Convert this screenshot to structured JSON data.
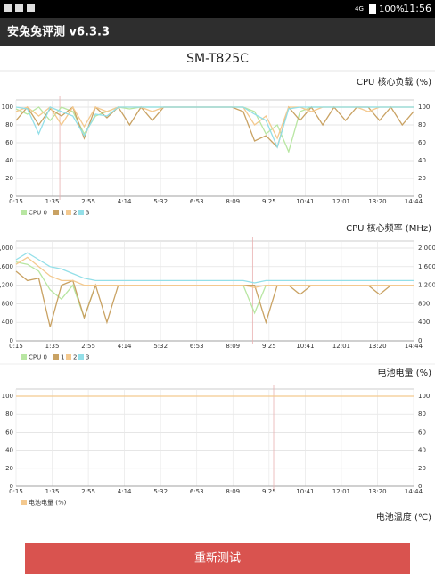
{
  "status_bar": {
    "network": "4G",
    "battery": "100%",
    "time": "11:56"
  },
  "app_title": "安兔兔评测 v6.3.3",
  "device": "SM-T825C",
  "chart_data": [
    {
      "type": "line",
      "title": "CPU 核心负载 (%)",
      "xlabels": [
        "0:15",
        "1:35",
        "2:55",
        "4:14",
        "5:32",
        "6:53",
        "8:09",
        "9:25",
        "10:41",
        "12:01",
        "13:20",
        "14:44"
      ],
      "ylim": [
        0,
        100
      ],
      "yticks": [
        0,
        20,
        40,
        60,
        80,
        100
      ],
      "grid": true,
      "series": [
        {
          "name": "CPU 0",
          "color": "#b8e6a2",
          "values": [
            98,
            92,
            100,
            85,
            100,
            95,
            70,
            90,
            95,
            100,
            98,
            100,
            100,
            100,
            100,
            100,
            100,
            100,
            100,
            100,
            100,
            95,
            70,
            80,
            50,
            95,
            100,
            100,
            100,
            100,
            100,
            100,
            100,
            100,
            100,
            100
          ]
        },
        {
          "name": "1",
          "color": "#c9a263",
          "values": [
            85,
            100,
            80,
            98,
            90,
            100,
            65,
            100,
            88,
            100,
            80,
            100,
            85,
            100,
            100,
            100,
            100,
            100,
            100,
            100,
            95,
            62,
            68,
            55,
            100,
            85,
            100,
            80,
            100,
            85,
            100,
            100,
            85,
            100,
            80,
            95
          ]
        },
        {
          "name": "2",
          "color": "#f4c98f",
          "values": [
            95,
            100,
            90,
            100,
            80,
            100,
            78,
            100,
            95,
            100,
            100,
            100,
            95,
            100,
            100,
            100,
            100,
            100,
            100,
            100,
            100,
            80,
            90,
            65,
            100,
            100,
            95,
            100,
            100,
            100,
            100,
            95,
            100,
            100,
            100,
            100
          ]
        },
        {
          "name": "3",
          "color": "#93dfe8",
          "values": [
            100,
            98,
            70,
            100,
            95,
            90,
            68,
            92,
            90,
            100,
            100,
            100,
            100,
            100,
            100,
            100,
            100,
            100,
            100,
            100,
            100,
            92,
            85,
            55,
            98,
            100,
            100,
            100,
            100,
            100,
            100,
            100,
            100,
            100,
            100,
            100
          ]
        }
      ]
    },
    {
      "type": "line",
      "title": "CPU 核心频率 (MHz)",
      "xlabels": [
        "0:15",
        "1:35",
        "2:55",
        "4:14",
        "5:32",
        "6:53",
        "8:09",
        "9:25",
        "10:41",
        "12:01",
        "13:20",
        "14:44"
      ],
      "ylim": [
        0,
        2000
      ],
      "yticks": [
        0,
        400,
        800,
        {
          "value": 1200,
          "label": "1,200"
        },
        {
          "value": 1600,
          "label": "1,600"
        },
        {
          "value": 2000,
          "label": "2,000"
        }
      ],
      "grid": true,
      "series": [
        {
          "name": "CPU 0",
          "color": "#b8e6a2",
          "values": [
            1700,
            1650,
            1500,
            1100,
            900,
            1200,
            500,
            1200,
            1200,
            1200,
            1200,
            1200,
            1200,
            1200,
            1200,
            1200,
            1200,
            1200,
            1200,
            1200,
            1200,
            600,
            1200,
            1200,
            1200,
            1200,
            1200,
            1200,
            1200,
            1200,
            1200,
            1200,
            1200,
            1200,
            1200,
            1200
          ]
        },
        {
          "name": "1",
          "color": "#c9a263",
          "values": [
            1500,
            1300,
            1350,
            300,
            1200,
            1300,
            500,
            1200,
            400,
            1200,
            1200,
            1200,
            1200,
            1200,
            1200,
            1200,
            1200,
            1200,
            1200,
            1200,
            1200,
            1200,
            400,
            1200,
            1200,
            1000,
            1200,
            1200,
            1200,
            1200,
            1200,
            1200,
            1000,
            1200,
            1200,
            1200
          ]
        },
        {
          "name": "2",
          "color": "#f4c98f",
          "values": [
            1650,
            1800,
            1600,
            1400,
            1300,
            1300,
            1200,
            1200,
            1200,
            1200,
            1200,
            1200,
            1200,
            1200,
            1200,
            1200,
            1200,
            1200,
            1200,
            1200,
            1200,
            1150,
            1200,
            1200,
            1200,
            1200,
            1200,
            1200,
            1200,
            1200,
            1200,
            1200,
            1200,
            1200,
            1200,
            1200
          ]
        },
        {
          "name": "3",
          "color": "#93dfe8",
          "values": [
            1750,
            1900,
            1750,
            1600,
            1550,
            1450,
            1350,
            1300,
            1300,
            1300,
            1300,
            1300,
            1300,
            1300,
            1300,
            1300,
            1300,
            1300,
            1300,
            1300,
            1300,
            1250,
            1300,
            1300,
            1300,
            1300,
            1300,
            1300,
            1300,
            1300,
            1300,
            1300,
            1300,
            1300,
            1300,
            1300
          ]
        }
      ]
    },
    {
      "type": "line",
      "title": "电池电量 (%)",
      "xlabels": [
        "0:15",
        "1:35",
        "2:55",
        "4:14",
        "5:32",
        "6:53",
        "8:09",
        "9:25",
        "10:41",
        "12:01",
        "13:20",
        "14:44"
      ],
      "ylim": [
        0,
        100
      ],
      "yticks": [
        0,
        20,
        40,
        60,
        80,
        100
      ],
      "grid": true,
      "series": [
        {
          "name": "电池电量 (%)",
          "color": "#f4c98f",
          "values": [
            100,
            100
          ]
        }
      ]
    }
  ],
  "section_title": "电池温度 (℃)",
  "button": "重新测试"
}
